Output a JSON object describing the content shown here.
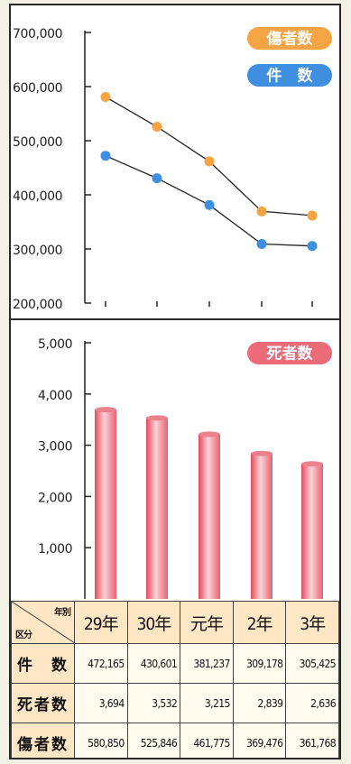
{
  "chart_data": [
    {
      "type": "line",
      "categories": [
        "29年",
        "30年",
        "元年",
        "2年",
        "3年"
      ],
      "ylim": [
        200000,
        700000
      ],
      "yticks": [
        "200,000",
        "300,000",
        "400,000",
        "500,000",
        "600,000",
        "700,000"
      ],
      "series": [
        {
          "name": "傷者数",
          "color": "#f5a443",
          "values": [
            580850,
            525846,
            461775,
            369476,
            361768
          ]
        },
        {
          "name": "件　数",
          "color": "#3f8fe0",
          "values": [
            472165,
            430601,
            381237,
            309178,
            305425
          ]
        }
      ],
      "legend": "top-right"
    },
    {
      "type": "bar",
      "categories": [
        "29年",
        "30年",
        "元年",
        "2年",
        "3年"
      ],
      "ylim": [
        0,
        5000
      ],
      "yticks": [
        "1,000",
        "2,000",
        "3,000",
        "4,000",
        "5,000"
      ],
      "series": [
        {
          "name": "死者数",
          "color": "#ec6b78",
          "values": [
            3694,
            3532,
            3215,
            2839,
            2636
          ]
        }
      ],
      "legend": "top-right"
    }
  ],
  "table": {
    "corner_top": "年別",
    "corner_bottom": "区分",
    "columns": [
      "29年",
      "30年",
      "元年",
      "2年",
      "3年"
    ],
    "rows": [
      {
        "label": "件　数",
        "values": [
          "472,165",
          "430,601",
          "381,237",
          "309,178",
          "305,425"
        ]
      },
      {
        "label": "死者数",
        "values": [
          "3,694",
          "3,532",
          "3,215",
          "2,839",
          "2,636"
        ]
      },
      {
        "label": "傷者数",
        "values": [
          "580,850",
          "525,846",
          "461,775",
          "369,476",
          "361,768"
        ]
      }
    ]
  }
}
